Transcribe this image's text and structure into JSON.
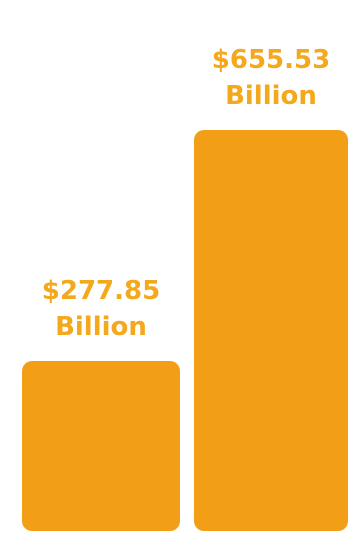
{
  "chart_data": {
    "type": "bar",
    "categories": [
      "",
      ""
    ],
    "values": [
      277.85,
      655.53
    ],
    "value_labels": [
      "$277.85",
      "$655.53"
    ],
    "unit_label": "Billion",
    "title": "",
    "xlabel": "",
    "ylabel": "",
    "ylim": [
      0,
      700
    ],
    "grid": false,
    "legend": "none",
    "colors": {
      "bar": "#F29E16",
      "label": "#F4A81C",
      "background": "#FFFFFF"
    }
  }
}
